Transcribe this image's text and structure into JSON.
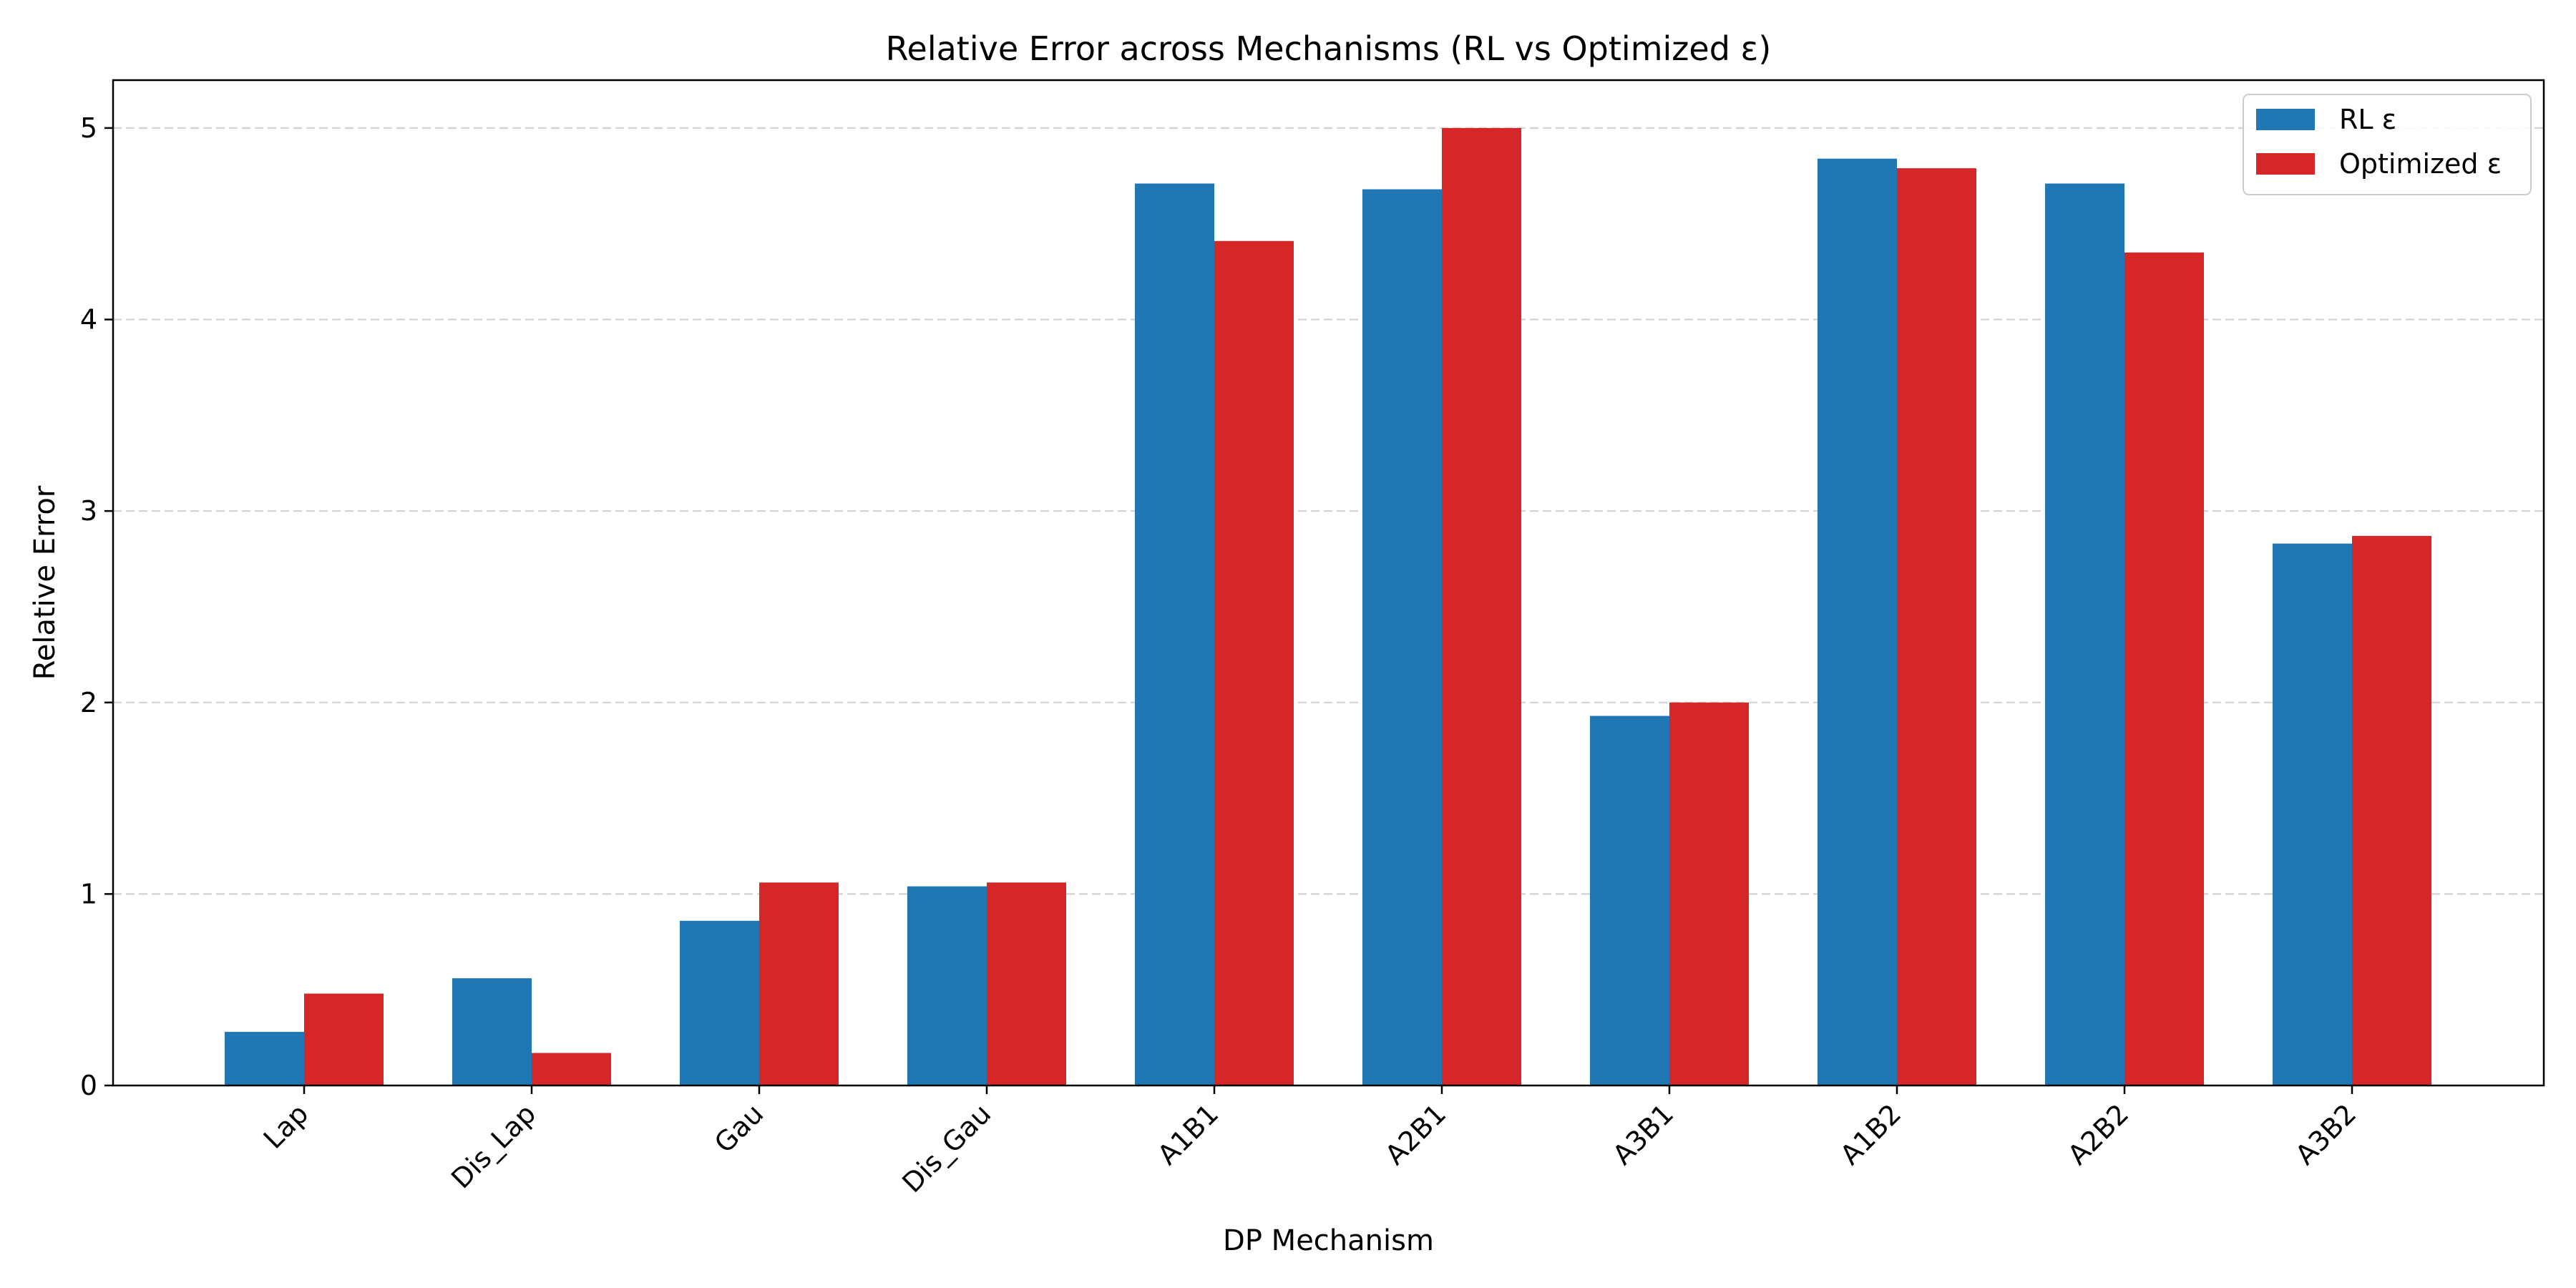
{
  "chart_data": {
    "type": "bar",
    "title": "Relative Error across Mechanisms (RL vs Optimized ε)",
    "xlabel": "DP Mechanism",
    "ylabel": "Relative Error",
    "categories": [
      "Lap",
      "Dis_Lap",
      "Gau",
      "Dis_Gau",
      "A1B1",
      "A2B1",
      "A3B1",
      "A1B2",
      "A2B2",
      "A3B2"
    ],
    "series": [
      {
        "name": "RL ε",
        "color": "#1f77b4",
        "values": [
          0.28,
          0.56,
          0.86,
          1.04,
          4.71,
          4.68,
          1.93,
          4.84,
          4.71,
          2.83
        ]
      },
      {
        "name": "Optimized ε",
        "color": "#d62728",
        "values": [
          0.48,
          0.17,
          1.06,
          1.06,
          4.41,
          5.0,
          2.0,
          4.79,
          4.35,
          2.87
        ]
      }
    ],
    "ylim": [
      0,
      5.25
    ],
    "yticks": [
      0,
      1,
      2,
      3,
      4,
      5
    ],
    "grid": "y-dashed",
    "legend_position": "top-right"
  }
}
